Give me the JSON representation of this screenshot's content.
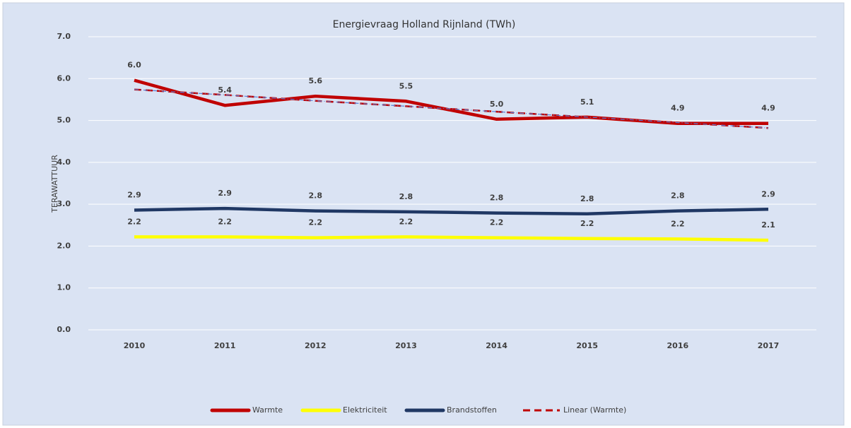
{
  "chart_data": {
    "type": "line",
    "title": "Energievraag Holland Rijnland (TWh)",
    "y_label": "TERAWATTUUR",
    "categories": [
      "2010",
      "2011",
      "2012",
      "2013",
      "2014",
      "2015",
      "2016",
      "2017"
    ],
    "series": [
      {
        "name": "Warmte",
        "color": "#c00000",
        "style": "solid",
        "values": [
          5.96,
          5.36,
          5.58,
          5.46,
          5.03,
          5.08,
          4.93,
          4.93
        ],
        "value_labels": [
          "6.0",
          "5.4",
          "5.6",
          "5.5",
          "5.0",
          "5.1",
          "4.9",
          "4.9"
        ]
      },
      {
        "name": "Elektriciteit",
        "color": "#ffff00",
        "style": "solid",
        "values": [
          2.22,
          2.22,
          2.2,
          2.22,
          2.2,
          2.18,
          2.17,
          2.14
        ],
        "value_labels": [
          "2.2",
          "2.2",
          "2.2",
          "2.2",
          "2.2",
          "2.2",
          "2.2",
          "2.1"
        ]
      },
      {
        "name": "Brandstoffen",
        "color": "#203864",
        "style": "solid",
        "values": [
          2.86,
          2.9,
          2.84,
          2.82,
          2.79,
          2.77,
          2.84,
          2.88
        ],
        "value_labels": [
          "2.9",
          "2.9",
          "2.8",
          "2.8",
          "2.8",
          "2.8",
          "2.8",
          "2.9"
        ]
      },
      {
        "name": "Linear (Warmte)",
        "color": "#c00000",
        "style": "dashed",
        "values": [
          5.74,
          5.61,
          5.47,
          5.34,
          5.21,
          5.08,
          4.95,
          4.82
        ]
      }
    ],
    "ylim": [
      0,
      7
    ],
    "yticks": [
      {
        "value": 0,
        "label": "0.0"
      },
      {
        "value": 1,
        "label": "1.0"
      },
      {
        "value": 2,
        "label": "2.0"
      },
      {
        "value": 3,
        "label": "3.0"
      },
      {
        "value": 4,
        "label": "4.0"
      },
      {
        "value": 5,
        "label": "5.0"
      },
      {
        "value": 6,
        "label": "6.0"
      },
      {
        "value": 7,
        "label": "7.0"
      }
    ],
    "grid": true,
    "legend": "bottom"
  }
}
